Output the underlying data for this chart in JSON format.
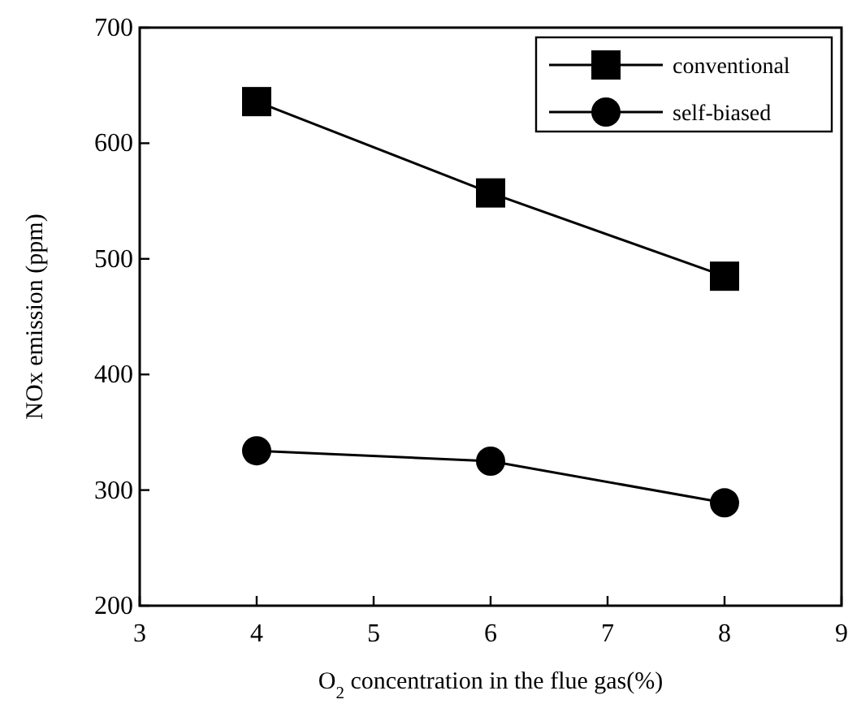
{
  "chart_data": {
    "type": "line",
    "xlabel": "O$_{2}$ concentration  in the flue gas(%)",
    "ylabel": "NOx emission (ppm)",
    "x": [
      4,
      6,
      8
    ],
    "series": [
      {
        "name": "conventional",
        "color": "#000000",
        "values": [
          636,
          557,
          485
        ],
        "marker": "square"
      },
      {
        "name": "self-biased",
        "color": "#000000",
        "values": [
          334,
          325,
          289
        ],
        "marker": "circle"
      }
    ],
    "xlim": [
      3,
      9
    ],
    "xticks": [
      3,
      4,
      5,
      6,
      7,
      8,
      9
    ],
    "ylim": [
      200,
      700
    ],
    "yticks": [
      200,
      300,
      400,
      500,
      600,
      700
    ],
    "legend": "top right",
    "grid": false,
    "line_style": "solid"
  }
}
